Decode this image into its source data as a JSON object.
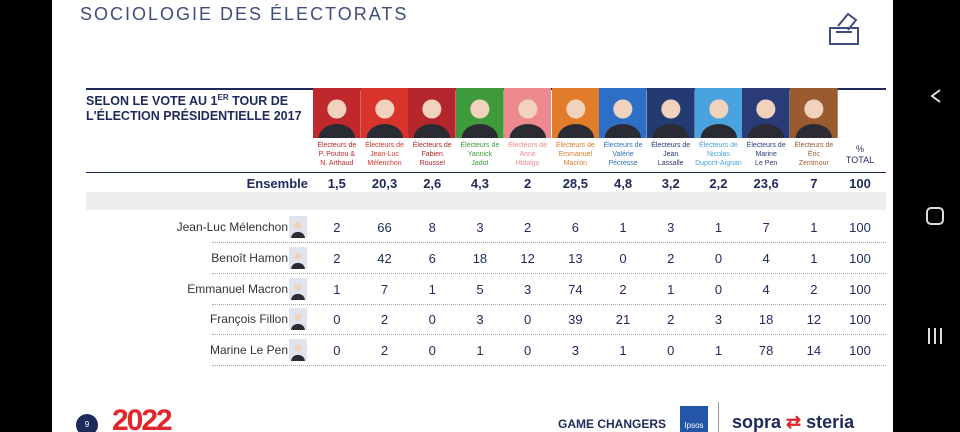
{
  "header": {
    "title": "SOCIOLOGIE DES ÉLECTORATS"
  },
  "table": {
    "caption": {
      "before": "SELON LE VOTE AU 1",
      "sup": "ER",
      "after": " TOUR DE L'ÉLECTION PRÉSIDENTIELLE 2017"
    },
    "columns": [
      {
        "label": "Électeurs de\nP. Poutou &\nN. Arthaud",
        "color": "#c0282d"
      },
      {
        "label": "Électeurs de\nJean-Luc\nMélenchon",
        "color": "#d9342b"
      },
      {
        "label": "Électeurs de\nFabien\nRoussel",
        "color": "#b3262b"
      },
      {
        "label": "Électeurs de\nYannick\nJadot",
        "color": "#3f9a3c"
      },
      {
        "label": "Électeurs de\nAnne\nHidalgo",
        "color": "#ee8a8f"
      },
      {
        "label": "Électeurs de\nEmmanuel\nMacron",
        "color": "#e07c2a"
      },
      {
        "label": "Électeurs de\nValérie\nPécresse",
        "color": "#2d6fc4"
      },
      {
        "label": "Électeurs de\nJean\nLassalle",
        "color": "#243a73"
      },
      {
        "label": "Électeurs de\nNicolas\nDupont-Aignan",
        "color": "#4aa3df"
      },
      {
        "label": "Électeurs de\nMarine\nLe Pen",
        "color": "#2a3b78"
      },
      {
        "label": "Électeurs de\nÉric\nZemmour",
        "color": "#9a5b2e"
      }
    ],
    "total_header": "%\nTOTAL",
    "summary": {
      "label": "Ensemble",
      "values": [
        "1,5",
        "20,3",
        "2,6",
        "4,3",
        "2",
        "28,5",
        "4,8",
        "3,2",
        "2,2",
        "23,6",
        "7"
      ],
      "total": "100"
    },
    "rows": [
      {
        "label": "Jean-Luc Mélenchon",
        "values": [
          2,
          66,
          8,
          3,
          2,
          6,
          1,
          3,
          1,
          7,
          1
        ],
        "total": 100
      },
      {
        "label": "Benoît Hamon",
        "values": [
          2,
          42,
          6,
          18,
          12,
          13,
          0,
          2,
          0,
          4,
          1
        ],
        "total": 100
      },
      {
        "label": "Emmanuel Macron",
        "values": [
          1,
          7,
          1,
          5,
          3,
          74,
          2,
          1,
          0,
          4,
          2
        ],
        "total": 100
      },
      {
        "label": "François Fillon",
        "values": [
          0,
          2,
          0,
          3,
          0,
          39,
          21,
          2,
          3,
          18,
          12
        ],
        "total": 100
      },
      {
        "label": "Marine Le Pen",
        "values": [
          0,
          2,
          0,
          1,
          0,
          3,
          1,
          0,
          1,
          78,
          14
        ],
        "total": 100
      }
    ]
  },
  "footer": {
    "page": "9",
    "logo": "2022",
    "tagline": "GAME CHANGERS",
    "ipsos": "Ipsos",
    "sopra": "sopra",
    "steria": "steria"
  }
}
